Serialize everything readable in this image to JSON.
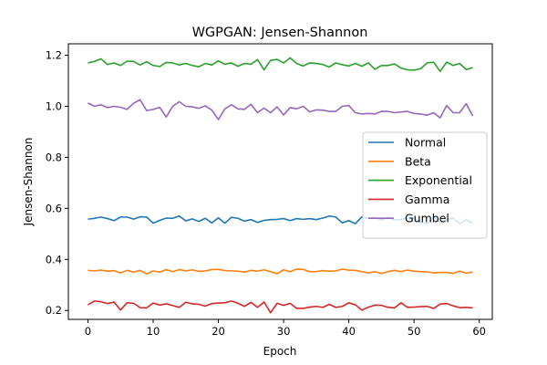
{
  "chart_data": {
    "type": "line",
    "title": "WGPGAN: Jensen-Shannon",
    "xlabel": "Epoch",
    "ylabel": "Jensen-Shannon",
    "xlim": [
      -3,
      62
    ],
    "ylim": [
      0.165,
      1.245
    ],
    "xticks": [
      0,
      10,
      20,
      30,
      40,
      50,
      60
    ],
    "yticks": [
      0.2,
      0.4,
      0.6,
      0.8,
      1.0,
      1.2
    ],
    "xtick_labels": [
      "0",
      "10",
      "20",
      "30",
      "40",
      "50",
      "60"
    ],
    "ytick_labels": [
      "0.2",
      "0.4",
      "0.6",
      "0.8",
      "1.0",
      "1.2"
    ],
    "grid": false,
    "legend_position": "center-right",
    "x": [
      0,
      1,
      2,
      3,
      4,
      5,
      6,
      7,
      8,
      9,
      10,
      11,
      12,
      13,
      14,
      15,
      16,
      17,
      18,
      19,
      20,
      21,
      22,
      23,
      24,
      25,
      26,
      27,
      28,
      29,
      30,
      31,
      32,
      33,
      34,
      35,
      36,
      37,
      38,
      39,
      40,
      41,
      42,
      43,
      44,
      45,
      46,
      47,
      48,
      49,
      50,
      51,
      52,
      53,
      54,
      55,
      56,
      57,
      58,
      59
    ],
    "series": [
      {
        "name": "Normal",
        "color": "#1f77b4",
        "values": [
          0.558,
          0.561,
          0.566,
          0.56,
          0.552,
          0.566,
          0.566,
          0.558,
          0.567,
          0.566,
          0.542,
          0.553,
          0.562,
          0.561,
          0.57,
          0.551,
          0.559,
          0.549,
          0.561,
          0.543,
          0.563,
          0.542,
          0.565,
          0.561,
          0.55,
          0.556,
          0.545,
          0.553,
          0.556,
          0.557,
          0.56,
          0.552,
          0.56,
          0.557,
          0.56,
          0.556,
          0.562,
          0.57,
          0.566,
          0.543,
          0.552,
          0.54,
          0.567,
          0.56,
          0.565,
          0.554,
          0.565,
          0.555,
          0.556,
          0.563,
          0.561,
          0.545,
          0.54,
          0.566,
          0.545,
          0.556,
          0.563,
          0.54,
          0.556,
          0.541
        ]
      },
      {
        "name": "Beta",
        "color": "#ff7f0e",
        "values": [
          0.357,
          0.355,
          0.358,
          0.354,
          0.356,
          0.347,
          0.357,
          0.35,
          0.357,
          0.343,
          0.355,
          0.35,
          0.36,
          0.352,
          0.36,
          0.355,
          0.359,
          0.353,
          0.355,
          0.36,
          0.361,
          0.356,
          0.355,
          0.354,
          0.35,
          0.357,
          0.354,
          0.359,
          0.352,
          0.344,
          0.359,
          0.352,
          0.362,
          0.361,
          0.352,
          0.352,
          0.356,
          0.354,
          0.355,
          0.362,
          0.358,
          0.357,
          0.352,
          0.347,
          0.352,
          0.345,
          0.352,
          0.357,
          0.352,
          0.358,
          0.354,
          0.352,
          0.351,
          0.347,
          0.349,
          0.349,
          0.345,
          0.354,
          0.346,
          0.351
        ]
      },
      {
        "name": "Exponential",
        "color": "#2ca02c",
        "values": [
          1.17,
          1.176,
          1.186,
          1.164,
          1.17,
          1.16,
          1.177,
          1.176,
          1.162,
          1.175,
          1.16,
          1.156,
          1.172,
          1.17,
          1.162,
          1.168,
          1.16,
          1.155,
          1.168,
          1.162,
          1.178,
          1.165,
          1.17,
          1.157,
          1.168,
          1.165,
          1.183,
          1.143,
          1.18,
          1.184,
          1.17,
          1.19,
          1.168,
          1.158,
          1.17,
          1.168,
          1.164,
          1.154,
          1.17,
          1.163,
          1.158,
          1.168,
          1.157,
          1.17,
          1.145,
          1.16,
          1.16,
          1.166,
          1.15,
          1.143,
          1.142,
          1.147,
          1.17,
          1.173,
          1.137,
          1.173,
          1.16,
          1.168,
          1.144,
          1.152
        ]
      },
      {
        "name": "Gamma",
        "color": "#d62728",
        "values": [
          0.222,
          0.237,
          0.234,
          0.227,
          0.233,
          0.202,
          0.23,
          0.228,
          0.211,
          0.21,
          0.229,
          0.221,
          0.226,
          0.219,
          0.212,
          0.232,
          0.226,
          0.224,
          0.217,
          0.227,
          0.229,
          0.23,
          0.237,
          0.228,
          0.216,
          0.232,
          0.212,
          0.233,
          0.191,
          0.228,
          0.22,
          0.228,
          0.208,
          0.208,
          0.213,
          0.216,
          0.212,
          0.224,
          0.212,
          0.216,
          0.23,
          0.222,
          0.201,
          0.213,
          0.221,
          0.22,
          0.212,
          0.21,
          0.23,
          0.212,
          0.213,
          0.215,
          0.216,
          0.208,
          0.225,
          0.227,
          0.218,
          0.211,
          0.212,
          0.21
        ]
      },
      {
        "name": "Gumbel",
        "color": "#9467bd",
        "values": [
          1.013,
          1.0,
          1.006,
          0.995,
          1.0,
          0.996,
          0.988,
          1.012,
          1.026,
          0.983,
          0.988,
          0.996,
          0.958,
          1.0,
          1.018,
          1.0,
          0.998,
          0.992,
          1.002,
          0.985,
          0.948,
          0.99,
          1.006,
          0.99,
          0.988,
          1.008,
          0.975,
          0.993,
          0.975,
          0.998,
          0.966,
          0.995,
          0.99,
          1.0,
          0.978,
          0.986,
          0.985,
          0.98,
          0.98,
          1.0,
          1.003,
          0.975,
          0.97,
          0.972,
          0.97,
          0.98,
          0.98,
          0.975,
          0.978,
          0.98,
          0.972,
          0.97,
          0.965,
          0.975,
          0.955,
          1.003,
          0.975,
          0.975,
          1.01,
          0.962
        ]
      }
    ]
  }
}
